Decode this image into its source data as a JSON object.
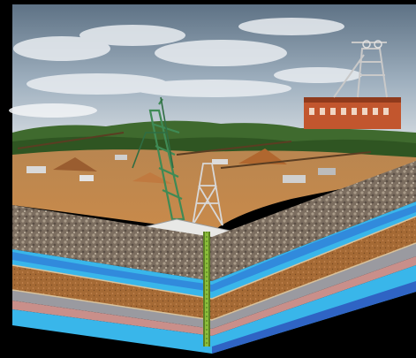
{
  "image": {
    "subject": "mining-site-cutaway",
    "has_visible_text": false
  },
  "colors": {
    "background": "#000000",
    "sky_top": "#5e7285",
    "sky_bottom": "#c9d2da",
    "cloud": "#e9edf1",
    "forest": "#3f6a2e",
    "forest_dark": "#2a4a1f",
    "ground": "#c98a4a",
    "ground_dark": "#8f5a2c",
    "headframe_building": "#c2562e",
    "headframe_steel": "#c9c9c9",
    "crane_green": "#3f8a55",
    "rock_gravel": "#8b7b6a",
    "stratum_blue": "#2f7fd8",
    "stratum_cyan": "#39b6ea",
    "stratum_brown": "#a56a35",
    "stratum_tan": "#c9a06d",
    "stratum_pink": "#c98f8a",
    "stratum_grey": "#9a9aa0",
    "borehole": "#8bbf3a"
  }
}
